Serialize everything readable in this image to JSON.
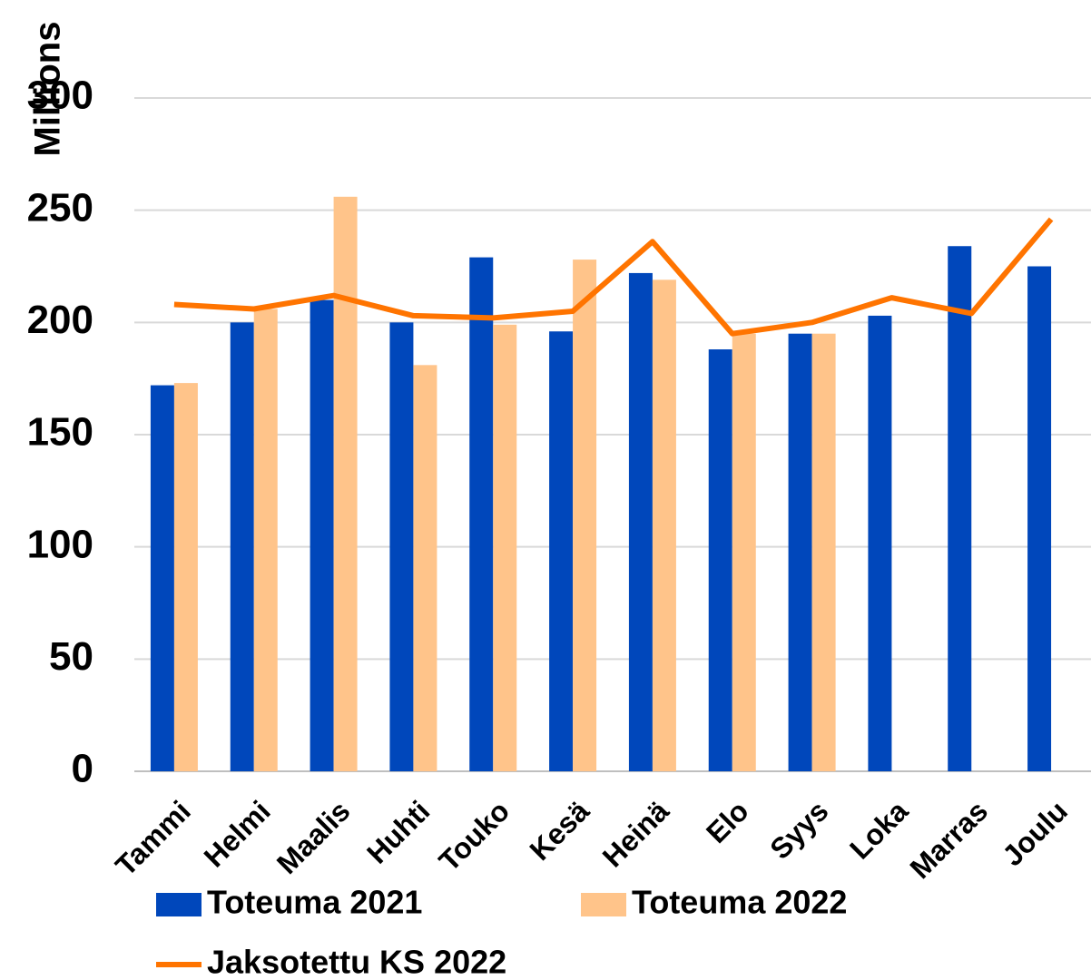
{
  "chart_data": {
    "type": "bar",
    "y_label": "Millions",
    "categories": [
      "Tammi",
      "Helmi",
      "Maalis",
      "Huhti",
      "Touko",
      "Kesä",
      "Heinä",
      "Elo",
      "Syys",
      "Loka",
      "Marras",
      "Joulu"
    ],
    "series": [
      {
        "name": "Toteuma 2021",
        "color": "#0047bb",
        "values": [
          172,
          200,
          210,
          200,
          229,
          196,
          222,
          188,
          195,
          203,
          234,
          225
        ]
      },
      {
        "name": "Toteuma 2022",
        "color": "#ffc48a",
        "values": [
          173,
          206,
          256,
          181,
          199,
          228,
          219,
          195,
          195,
          null,
          null,
          null
        ]
      },
      {
        "name": "Jaksotettu KS 2022",
        "color": "#ff7400",
        "type": "line",
        "values": [
          208,
          206,
          212,
          203,
          202,
          205,
          236,
          195,
          200,
          211,
          204,
          246
        ]
      }
    ],
    "ylim": [
      0,
      300
    ],
    "yticks": [
      0,
      50,
      100,
      150,
      200,
      250,
      300
    ],
    "grid": true
  }
}
